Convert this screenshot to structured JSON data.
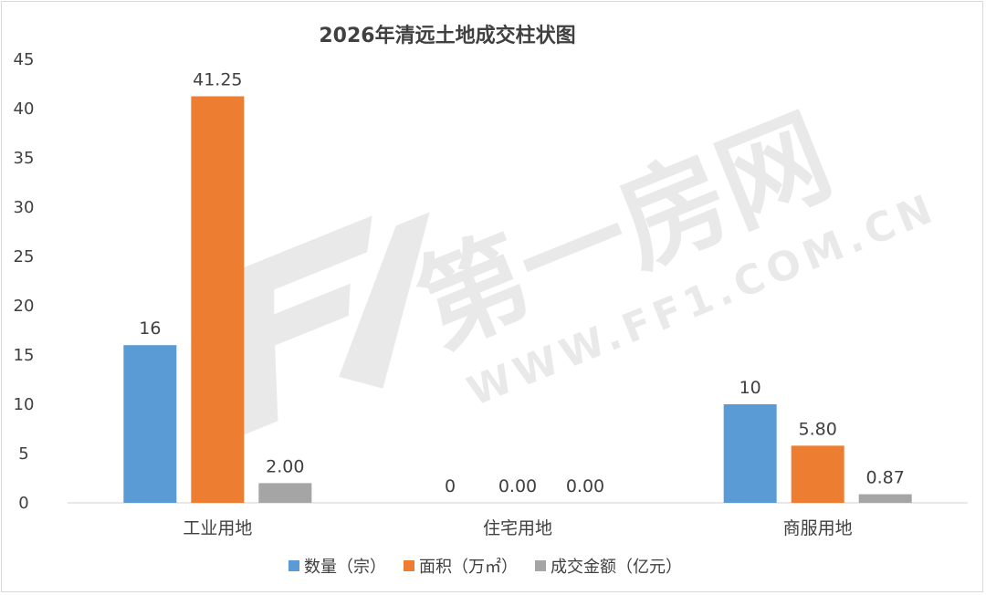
{
  "chart_data": {
    "type": "bar",
    "title": "2026年清远土地成交柱状图",
    "categories": [
      "工业用地",
      "住宅用地",
      "商服用地"
    ],
    "series": [
      {
        "name": "数量（宗）",
        "color": "#5b9bd5",
        "values": [
          16,
          0,
          10
        ],
        "labels": [
          "16",
          "0",
          "10"
        ]
      },
      {
        "name": "面积（万㎡）",
        "color": "#ed7d31",
        "values": [
          41.25,
          0,
          5.8
        ],
        "labels": [
          "41.25",
          "0.00",
          "5.80"
        ]
      },
      {
        "name": "成交金额（亿元）",
        "color": "#a5a5a5",
        "values": [
          2.0,
          0,
          0.87
        ],
        "labels": [
          "2.00",
          "0.00",
          "0.87"
        ]
      }
    ],
    "yticks": [
      "0",
      "5",
      "10",
      "15",
      "20",
      "25",
      "30",
      "35",
      "40",
      "45"
    ],
    "ylim": [
      0,
      45
    ],
    "grid": false,
    "legend_position": "bottom"
  },
  "watermark": {
    "text_cn": "第一房网",
    "text_url": "WWW.FF1.COM.CN"
  }
}
